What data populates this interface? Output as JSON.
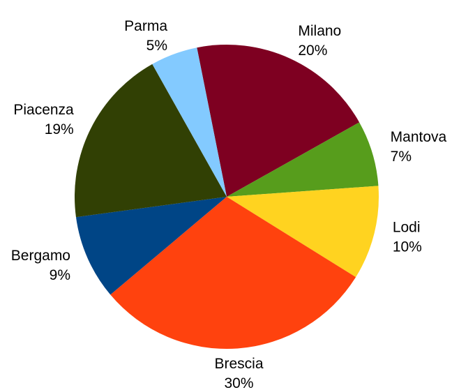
{
  "chart_data": {
    "type": "pie",
    "categories": [
      "Milano",
      "Mantova",
      "Lodi",
      "Brescia",
      "Bergamo",
      "Piacenza",
      "Parma"
    ],
    "values": [
      20,
      7,
      10,
      30,
      9,
      19,
      5
    ],
    "value_labels": [
      "20%",
      "7%",
      "10%",
      "30%",
      "9%",
      "19%",
      "5%"
    ],
    "colors": [
      "#7e0021",
      "#579d1c",
      "#ffd320",
      "#ff420e",
      "#004586",
      "#314004",
      "#83caff"
    ]
  }
}
